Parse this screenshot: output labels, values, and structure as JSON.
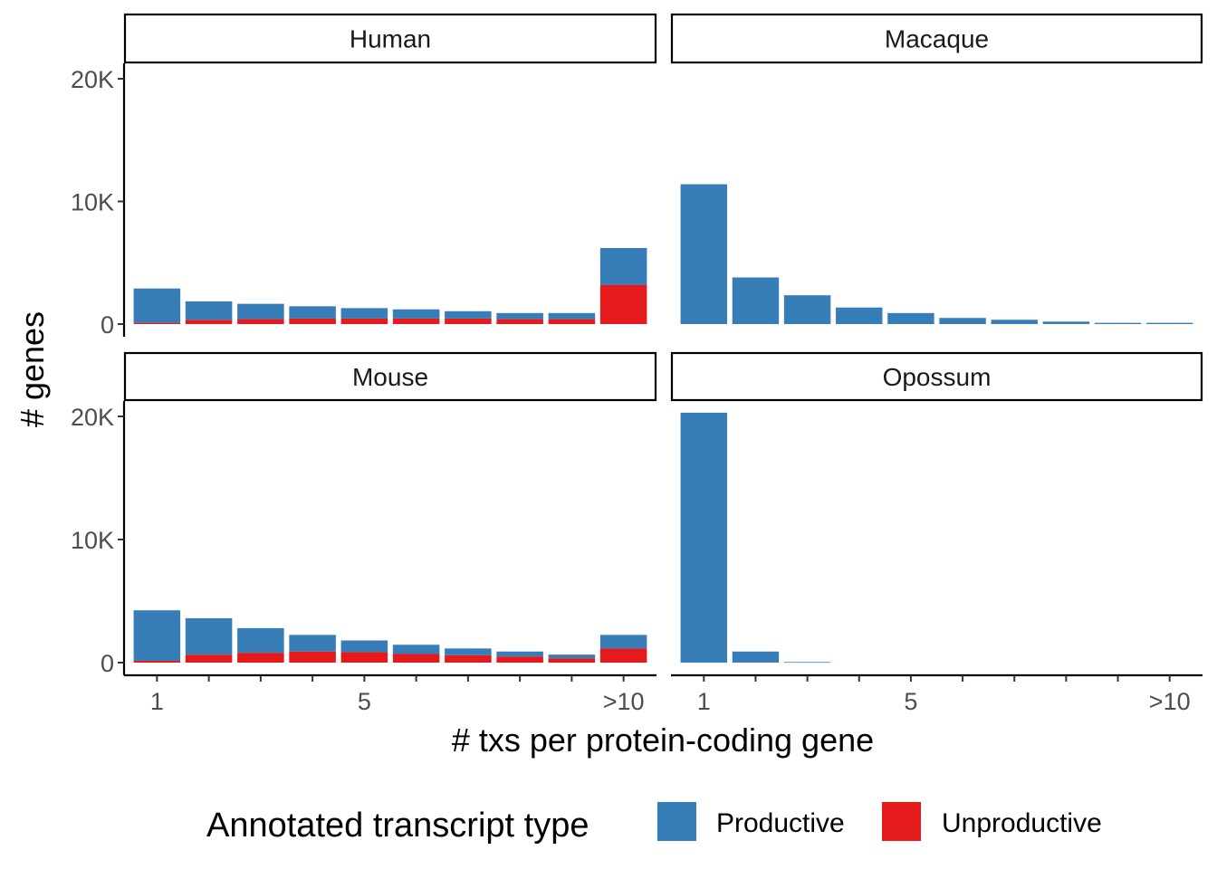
{
  "chart_data": {
    "type": "bar",
    "stacked": true,
    "facets": [
      "Human",
      "Macaque",
      "Mouse",
      "Opossum"
    ],
    "x_categories": [
      "1",
      "2",
      "3",
      "4",
      "5",
      "6",
      "7",
      "8",
      "9",
      ">10"
    ],
    "x_tick_labels": {
      "1": "1",
      "5": "5",
      ">10": ">10"
    },
    "xlabel": "# txs per protein-coding gene",
    "ylabel": "# genes",
    "ylim": [
      0,
      21000
    ],
    "y_ticks": [
      0,
      10000,
      20000
    ],
    "y_tick_labels": [
      "0",
      "10K",
      "20K"
    ],
    "legend": {
      "title": "Annotated transcript type",
      "position": "bottom",
      "entries": [
        "Productive",
        "Unproductive"
      ]
    },
    "colors": {
      "Productive": "#377EB8",
      "Unproductive": "#E41A1C"
    },
    "panels": [
      {
        "facet": "Human",
        "series": [
          {
            "name": "Unproductive",
            "values": [
              100,
              350,
              400,
              450,
              450,
              450,
              450,
              400,
              400,
              3200
            ]
          },
          {
            "name": "Productive",
            "values": [
              2800,
              1500,
              1250,
              1000,
              850,
              750,
              600,
              500,
              500,
              3000
            ]
          }
        ]
      },
      {
        "facet": "Macaque",
        "series": [
          {
            "name": "Unproductive",
            "values": [
              0,
              0,
              0,
              0,
              0,
              0,
              0,
              0,
              0,
              0
            ]
          },
          {
            "name": "Productive",
            "values": [
              11400,
              3800,
              2350,
              1350,
              900,
              500,
              350,
              200,
              100,
              100
            ]
          }
        ]
      },
      {
        "facet": "Mouse",
        "series": [
          {
            "name": "Unproductive",
            "values": [
              150,
              650,
              800,
              900,
              850,
              700,
              600,
              500,
              350,
              1150
            ]
          },
          {
            "name": "Productive",
            "values": [
              4100,
              2950,
              2000,
              1350,
              950,
              750,
              550,
              400,
              300,
              1100
            ]
          }
        ]
      },
      {
        "facet": "Opossum",
        "series": [
          {
            "name": "Unproductive",
            "values": [
              0,
              0,
              0,
              0,
              0,
              0,
              0,
              0,
              0,
              0
            ]
          },
          {
            "name": "Productive",
            "values": [
              20300,
              900,
              50,
              0,
              0,
              0,
              0,
              0,
              0,
              0
            ]
          }
        ]
      }
    ]
  }
}
